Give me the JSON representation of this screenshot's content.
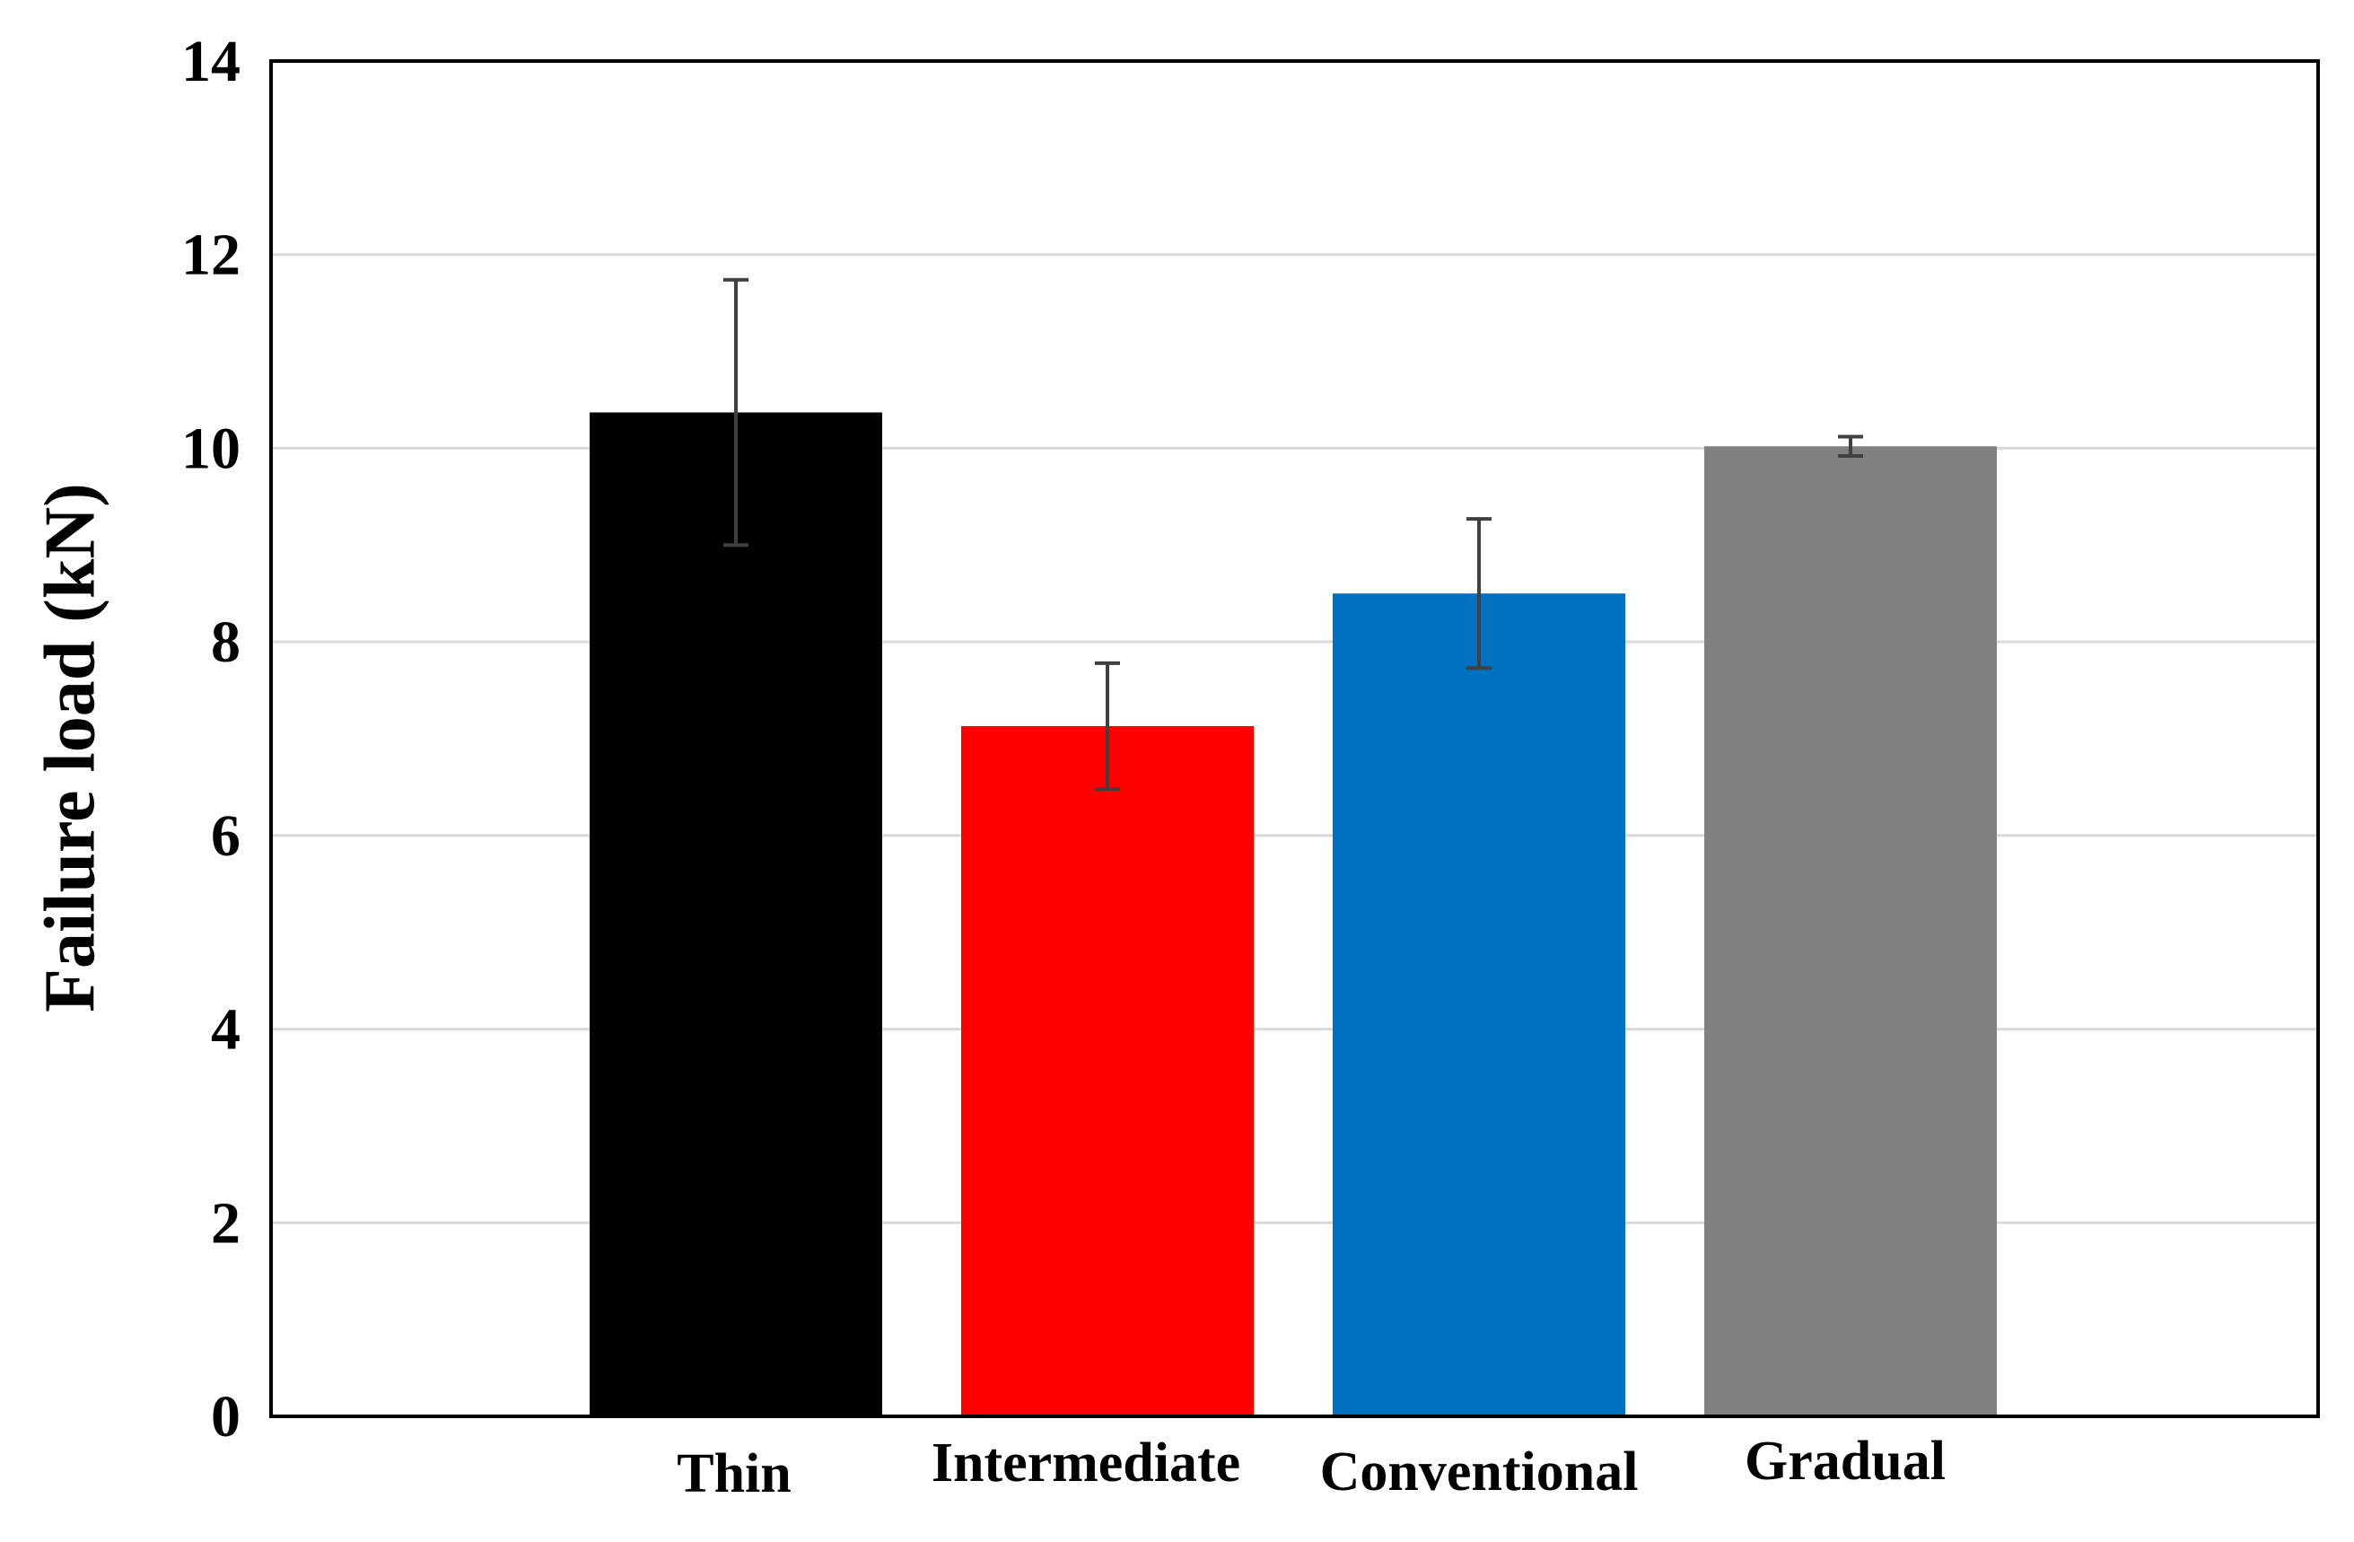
{
  "chart_data": {
    "type": "bar",
    "title": "",
    "xlabel": "",
    "ylabel": "Failure load (kN)",
    "ylim": [
      0,
      14
    ],
    "yticks": [
      "0",
      "2",
      "4",
      "6",
      "8",
      "10",
      "12",
      "14"
    ],
    "grid": true,
    "categories": [
      "Thin",
      "Intermediate",
      "Conventional",
      "Gradual"
    ],
    "values": [
      10.37,
      7.13,
      8.5,
      10.02
    ],
    "errors": [
      1.37,
      0.65,
      0.77,
      0.1
    ],
    "colors": [
      "#000000",
      "#ff0000",
      "#0070c0",
      "#808080"
    ]
  }
}
